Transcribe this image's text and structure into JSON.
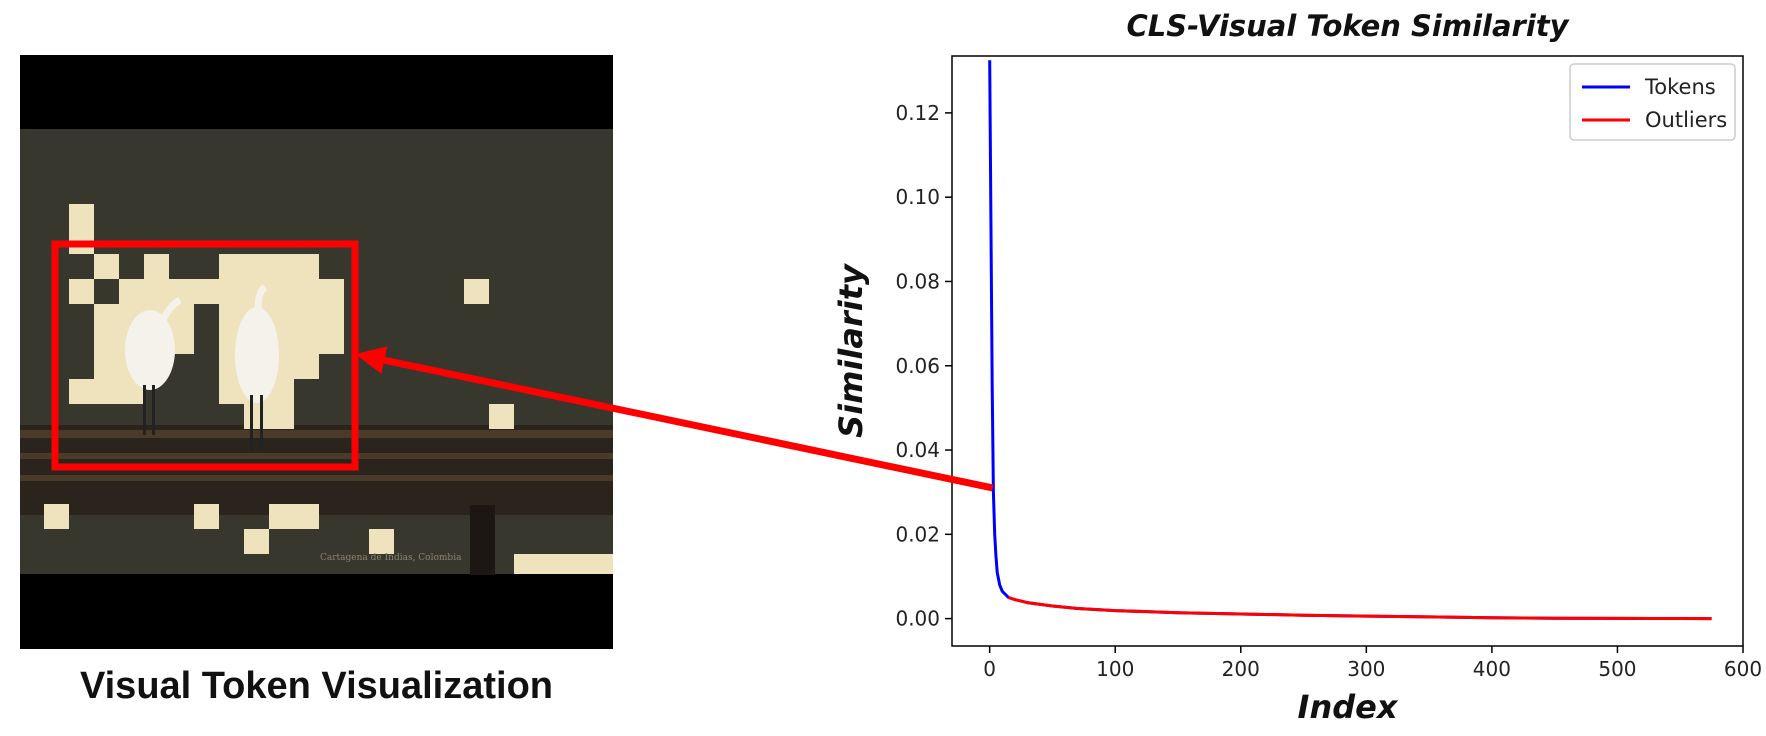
{
  "left_panel": {
    "caption": "Visual Token Visualization",
    "overlay_text": "Cartagena de Indias, Colombia",
    "highlight_color": "#ff0000"
  },
  "chart_data": {
    "type": "line",
    "title": "CLS-Visual Token Similarity",
    "xlabel": "Index",
    "ylabel": "Similarity",
    "xlim": [
      -30,
      600
    ],
    "ylim": [
      -0.0065,
      0.1335
    ],
    "xticks": [
      0,
      100,
      200,
      300,
      400,
      500,
      600
    ],
    "yticks": [
      0.0,
      0.02,
      0.04,
      0.06,
      0.08,
      0.1,
      0.12
    ],
    "ytick_labels": [
      "0.00",
      "0.02",
      "0.04",
      "0.06",
      "0.08",
      "0.10",
      "0.12"
    ],
    "legend_position": "top-right",
    "series": [
      {
        "name": "Tokens",
        "color": "#0000ff",
        "x": [
          0,
          1,
          2,
          3,
          4,
          5,
          6,
          8,
          10,
          15,
          20,
          30,
          50,
          70,
          100,
          150,
          200,
          250,
          300,
          350,
          400,
          450,
          500,
          550,
          575
        ],
        "y": [
          0.1325,
          0.095,
          0.055,
          0.03,
          0.02,
          0.015,
          0.011,
          0.008,
          0.0065,
          0.005,
          0.0045,
          0.0038,
          0.003,
          0.0024,
          0.0019,
          0.0014,
          0.0011,
          0.0008,
          0.0006,
          0.0004,
          0.0002,
          0.0001,
          5e-05,
          2e-05,
          0.0
        ]
      },
      {
        "name": "Outliers",
        "color": "#ff0000",
        "x": [
          15,
          20,
          30,
          50,
          70,
          100,
          150,
          200,
          250,
          300,
          350,
          400,
          450,
          500,
          550,
          575
        ],
        "y": [
          0.005,
          0.0045,
          0.0038,
          0.003,
          0.0024,
          0.0019,
          0.0014,
          0.0011,
          0.0008,
          0.0006,
          0.0004,
          0.0002,
          0.0001,
          5e-05,
          2e-05,
          0.0
        ]
      }
    ],
    "annotation": {
      "type": "arrow",
      "from": [
        0,
        0.031
      ],
      "to": "highlighted region in left image",
      "color": "#ff0000"
    }
  }
}
